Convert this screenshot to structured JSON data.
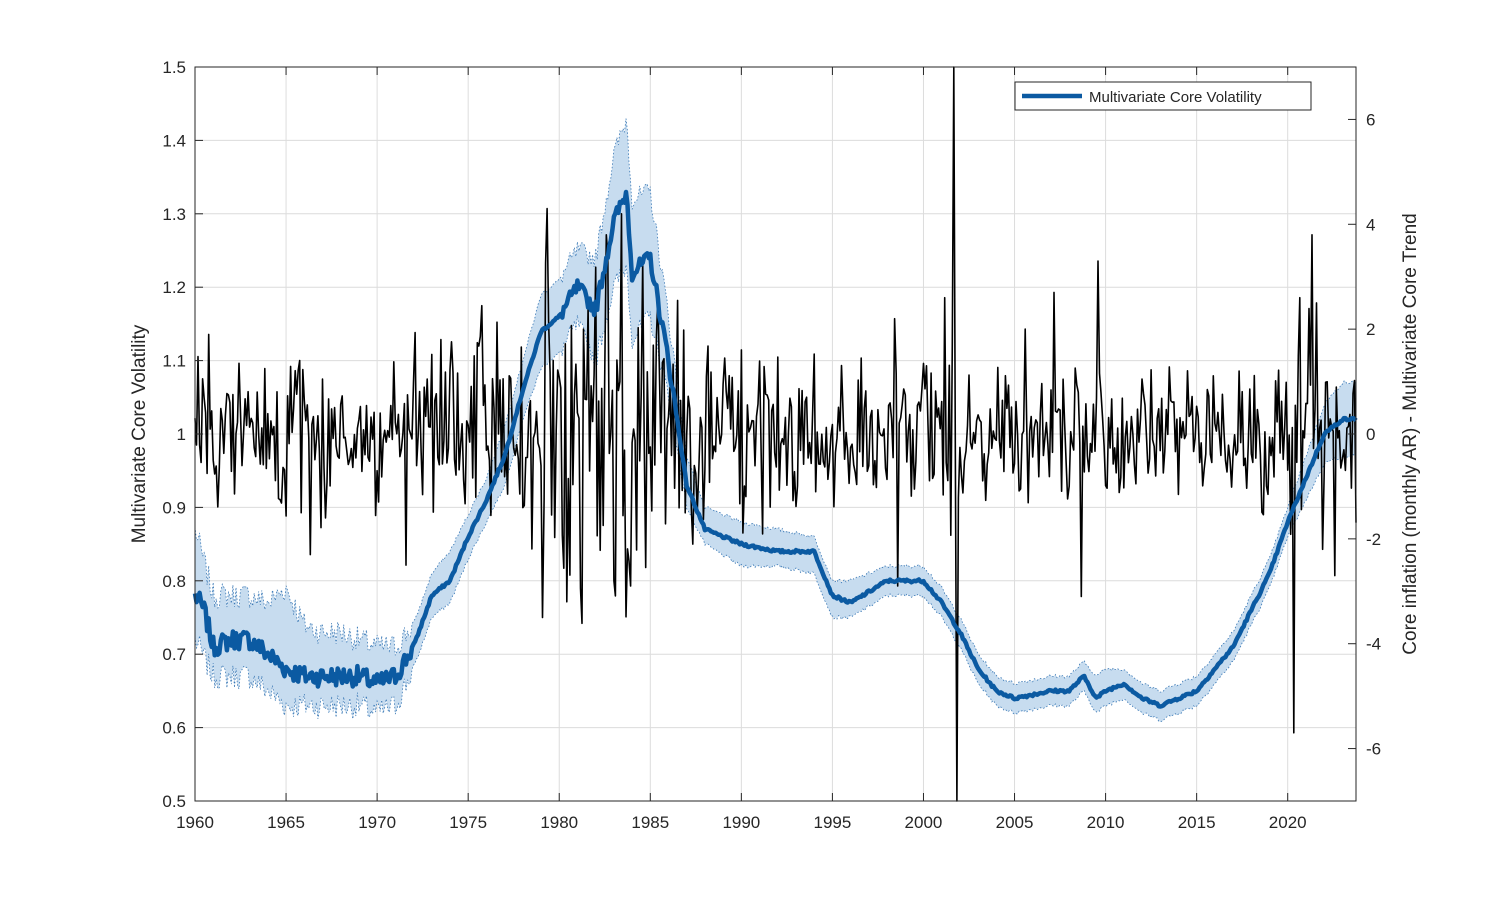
{
  "chart_data": {
    "type": "line",
    "title": "",
    "xlabel": "",
    "ylabel_left": "Multivariate Core Volatility",
    "ylabel_right": "Core inflation (monthly AR) - Multivariate Core Trend",
    "xlim": [
      1960,
      2023.75
    ],
    "ylim_left": [
      0.5,
      1.5
    ],
    "ylim_right": [
      -7,
      7
    ],
    "x_ticks": [
      1960,
      1965,
      1970,
      1975,
      1980,
      1985,
      1990,
      1995,
      2000,
      2005,
      2010,
      2015,
      2020
    ],
    "x_tick_labels": [
      "1960",
      "1965",
      "1970",
      "1975",
      "1980",
      "1985",
      "1990",
      "1995",
      "2000",
      "2005",
      "2010",
      "2015",
      "2020"
    ],
    "y_ticks_left": [
      0.5,
      0.6,
      0.7,
      0.8,
      0.9,
      1,
      1.1,
      1.2,
      1.3,
      1.4,
      1.5
    ],
    "y_tick_labels_left": [
      "0.5",
      "0.6",
      "0.7",
      "0.8",
      "0.9",
      "1",
      "1.1",
      "1.2",
      "1.3",
      "1.4",
      "1.5"
    ],
    "y_ticks_right": [
      -6,
      -4,
      -2,
      0,
      2,
      4,
      6
    ],
    "y_tick_labels_right": [
      "-6",
      "-4",
      "-2",
      "0",
      "2",
      "4",
      "6"
    ],
    "grid": true,
    "legend": {
      "position": "top-right",
      "entries": [
        "Multivariate Core Volatility"
      ]
    },
    "colors": {
      "volatility_line": "#0b5aa2",
      "band_fill": "#c7dcef",
      "band_edge": "#3a78b5",
      "gap_series": "#000000",
      "grid": "#dcdcdc",
      "axis": "#262626"
    },
    "series": [
      {
        "name": "Multivariate Core Volatility",
        "axis": "left",
        "x": [
          1960,
          1960.5,
          1961,
          1962,
          1963,
          1964,
          1965,
          1966,
          1967,
          1968,
          1969,
          1970,
          1971,
          1972,
          1973,
          1974,
          1975,
          1976,
          1977,
          1978,
          1979,
          1980,
          1981,
          1982,
          1983,
          1983.7,
          1984,
          1985,
          1986,
          1987,
          1988,
          1990,
          1992,
          1994,
          1995,
          1996,
          1998,
          2000,
          2001,
          2002,
          2003,
          2004,
          2005,
          2007,
          2008,
          2008.8,
          2009.5,
          2010,
          2011,
          2012,
          2013,
          2014,
          2015,
          2016,
          2017,
          2018,
          2019,
          2020,
          2021,
          2022,
          2023,
          2023.75
        ],
        "y": [
          0.78,
          0.76,
          0.71,
          0.72,
          0.72,
          0.7,
          0.68,
          0.67,
          0.67,
          0.67,
          0.67,
          0.66,
          0.67,
          0.71,
          0.78,
          0.8,
          0.86,
          0.91,
          0.97,
          1.06,
          1.14,
          1.16,
          1.2,
          1.17,
          1.29,
          1.33,
          1.22,
          1.24,
          1.1,
          0.93,
          0.87,
          0.85,
          0.84,
          0.84,
          0.78,
          0.77,
          0.8,
          0.8,
          0.77,
          0.73,
          0.68,
          0.65,
          0.64,
          0.65,
          0.65,
          0.67,
          0.64,
          0.65,
          0.66,
          0.64,
          0.63,
          0.64,
          0.65,
          0.68,
          0.71,
          0.76,
          0.81,
          0.88,
          0.94,
          1.0,
          1.02,
          1.02
        ]
      },
      {
        "name": "Multivariate Core Volatility band upper",
        "axis": "left",
        "x": [
          1960,
          1961,
          1962,
          1963,
          1964,
          1965,
          1966,
          1967,
          1968,
          1969,
          1970,
          1971,
          1972,
          1973,
          1974,
          1975,
          1976,
          1977,
          1978,
          1979,
          1980,
          1981,
          1982,
          1983,
          1983.7,
          1984,
          1985,
          1986,
          1987,
          1988,
          1990,
          1992,
          1994,
          1995,
          1996,
          1998,
          2000,
          2001,
          2002,
          2003,
          2004,
          2005,
          2007,
          2008,
          2008.8,
          2009.5,
          2010,
          2011,
          2012,
          2013,
          2014,
          2015,
          2016,
          2017,
          2018,
          2019,
          2020,
          2021,
          2022,
          2023,
          2023.75
        ],
        "y": [
          0.87,
          0.78,
          0.78,
          0.78,
          0.77,
          0.79,
          0.74,
          0.73,
          0.73,
          0.72,
          0.71,
          0.71,
          0.74,
          0.81,
          0.84,
          0.89,
          0.94,
          1.01,
          1.1,
          1.19,
          1.21,
          1.25,
          1.24,
          1.38,
          1.43,
          1.32,
          1.33,
          1.16,
          0.97,
          0.9,
          0.88,
          0.87,
          0.86,
          0.8,
          0.8,
          0.82,
          0.82,
          0.79,
          0.75,
          0.7,
          0.67,
          0.66,
          0.67,
          0.67,
          0.69,
          0.67,
          0.68,
          0.68,
          0.66,
          0.65,
          0.66,
          0.67,
          0.7,
          0.73,
          0.78,
          0.83,
          0.9,
          0.97,
          1.04,
          1.07,
          1.07
        ]
      },
      {
        "name": "Multivariate Core Volatility band lower",
        "axis": "left",
        "x": [
          1960,
          1961,
          1962,
          1963,
          1964,
          1965,
          1966,
          1967,
          1968,
          1969,
          1970,
          1971,
          1972,
          1973,
          1974,
          1975,
          1976,
          1977,
          1978,
          1979,
          1980,
          1981,
          1982,
          1983,
          1983.7,
          1984,
          1985,
          1986,
          1987,
          1988,
          1990,
          1992,
          1994,
          1995,
          1996,
          1998,
          2000,
          2001,
          2002,
          2003,
          2004,
          2005,
          2007,
          2008,
          2008.8,
          2009.5,
          2010,
          2011,
          2012,
          2013,
          2014,
          2015,
          2016,
          2017,
          2018,
          2019,
          2020,
          2021,
          2022,
          2023,
          2023.75
        ],
        "y": [
          0.72,
          0.67,
          0.67,
          0.67,
          0.65,
          0.63,
          0.63,
          0.63,
          0.63,
          0.63,
          0.62,
          0.63,
          0.68,
          0.75,
          0.77,
          0.83,
          0.88,
          0.93,
          1.02,
          1.09,
          1.11,
          1.15,
          1.1,
          1.2,
          1.23,
          1.13,
          1.16,
          1.05,
          0.9,
          0.85,
          0.82,
          0.82,
          0.81,
          0.75,
          0.75,
          0.78,
          0.78,
          0.75,
          0.71,
          0.66,
          0.63,
          0.62,
          0.63,
          0.63,
          0.65,
          0.62,
          0.63,
          0.64,
          0.62,
          0.61,
          0.62,
          0.63,
          0.66,
          0.69,
          0.74,
          0.79,
          0.86,
          0.91,
          0.96,
          0.97,
          0.97
        ]
      },
      {
        "name": "Core inflation (monthly AR) - Multivariate Core Trend",
        "axis": "right",
        "generation": {
          "start": 1960,
          "end": 2023.75,
          "points_per_year": 12,
          "seed": 7
        },
        "amplitude": {
          "x": [
            1960,
            1964,
            1966,
            1969,
            1971,
            1973,
            1977,
            1980,
            1984,
            1987,
            1990,
            1995,
            2000,
            2005,
            2010,
            2015,
            2019,
            2021,
            2023.75
          ],
          "y": [
            0.9,
            0.9,
            1.1,
            0.7,
            0.9,
            1.2,
            1.4,
            1.9,
            2.1,
            1.3,
            1.0,
            0.9,
            1.0,
            0.8,
            0.8,
            0.7,
            0.9,
            1.3,
            0.9
          ]
        },
        "spikes": [
          {
            "x": 1960.75,
            "y": 1.9
          },
          {
            "x": 1966.3,
            "y": -2.3
          },
          {
            "x": 1967.2,
            "y": -1.6
          },
          {
            "x": 1971.6,
            "y": -2.5
          },
          {
            "x": 1973.5,
            "y": 1.8
          },
          {
            "x": 1979.1,
            "y": -3.5
          },
          {
            "x": 1979.3,
            "y": 4.3
          },
          {
            "x": 1980.4,
            "y": -3.2
          },
          {
            "x": 1982.6,
            "y": 3.8
          },
          {
            "x": 1983.0,
            "y": -2.8
          },
          {
            "x": 1983.4,
            "y": 4.2
          },
          {
            "x": 1983.9,
            "y": -2.9
          },
          {
            "x": 1984.6,
            "y": 3.3
          },
          {
            "x": 1985.4,
            "y": 2.6
          },
          {
            "x": 1987.3,
            "y": -2.1
          },
          {
            "x": 1998.4,
            "y": 2.2
          },
          {
            "x": 1998.6,
            "y": -2.9
          },
          {
            "x": 2001.2,
            "y": 2.6
          },
          {
            "x": 2001.7,
            "y": 7.0
          },
          {
            "x": 2001.8,
            "y": -7.0
          },
          {
            "x": 2005.6,
            "y": 2.0
          },
          {
            "x": 2007.2,
            "y": 2.7
          },
          {
            "x": 2008.7,
            "y": -3.1
          },
          {
            "x": 2009.6,
            "y": 3.3
          },
          {
            "x": 2020.3,
            "y": -5.7
          },
          {
            "x": 2020.7,
            "y": 2.6
          },
          {
            "x": 2021.3,
            "y": 3.8
          },
          {
            "x": 2021.6,
            "y": 2.5
          },
          {
            "x": 2021.9,
            "y": -2.2
          },
          {
            "x": 2022.6,
            "y": -2.7
          }
        ]
      }
    ]
  }
}
